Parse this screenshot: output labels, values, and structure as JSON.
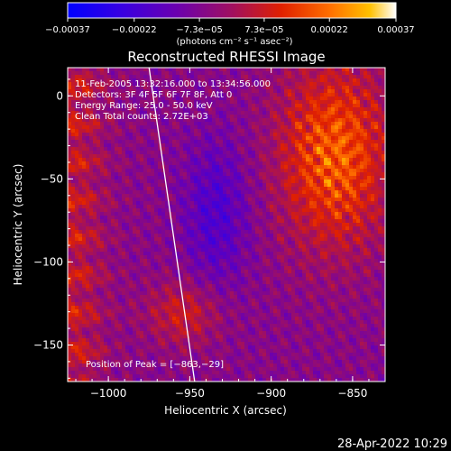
{
  "chart_data": {
    "type": "heatmap",
    "title": "Reconstructed RHESSI Image",
    "xlabel": "Heliocentric X (arcsec)",
    "ylabel": "Heliocentric Y (arcsec)",
    "xlim": [
      -1025,
      -830
    ],
    "ylim": [
      -172,
      17
    ],
    "x_ticks": [
      -1000,
      -950,
      -900,
      -850
    ],
    "x_tick_labels": [
      "−1000",
      "−950",
      "−900",
      "−850"
    ],
    "y_ticks": [
      0,
      -50,
      -100,
      -150
    ],
    "y_tick_labels": [
      "0",
      "−50",
      "−100",
      "−150"
    ],
    "colorbar": {
      "min": -0.00037,
      "max": 0.00037,
      "ticks": [
        -0.00037,
        -0.00022,
        -7.3e-05,
        7.3e-05,
        0.00022,
        0.00037
      ],
      "tick_labels": [
        "−0.00037",
        "−0.00022",
        "−7.3e−05",
        "7.3e−05",
        "0.00022",
        "0.00037"
      ],
      "unit_label": "(photons cm⁻² s⁻¹ asec⁻²)",
      "colors": [
        "#0000ff",
        "#5a00b8",
        "#7a00a0",
        "#c01010",
        "#ff5000",
        "#ff9a00",
        "#ffffff"
      ]
    },
    "annotations": {
      "time": "11-Feb-2005 13:32:16.000 to 13:34:56.000",
      "detectors": "Detectors: 3F 4F 5F 6F 7F 8F, Att 0",
      "energy": "Energy Range: 25.0 - 50.0 keV",
      "clean": "Clean    Total counts: 2.72E+03",
      "peak": "Position of Peak = [−863,−29]"
    },
    "peak": {
      "x": -863,
      "y": -29
    },
    "limb_line": [
      {
        "x": -975,
        "y": 17
      },
      {
        "x": -947,
        "y": -172
      }
    ]
  },
  "timestamp": "28-Apr-2022 10:29"
}
